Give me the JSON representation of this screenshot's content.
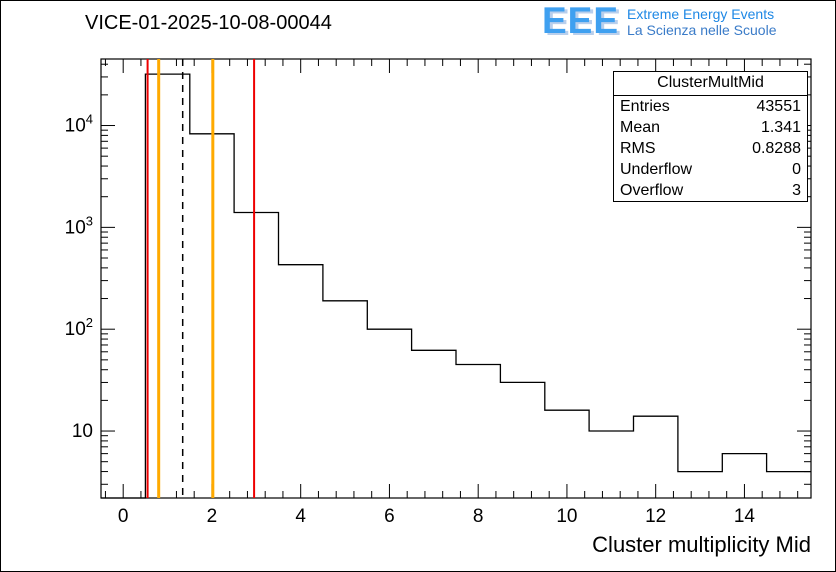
{
  "title": "VICE-01-2025-10-08-00044",
  "logo": {
    "acronym": "EEE",
    "line1": "Extreme Energy Events",
    "line2": "La Scienza nelle Scuole",
    "color": "#3fa0f0"
  },
  "stats": {
    "title": "ClusterMultMid",
    "rows": [
      {
        "label": "Entries",
        "value": "43551"
      },
      {
        "label": "Mean",
        "value": "1.341"
      },
      {
        "label": "RMS",
        "value": "0.8288"
      },
      {
        "label": "Underflow",
        "value": "0"
      },
      {
        "label": "Overflow",
        "value": "3"
      }
    ]
  },
  "chart_data": {
    "type": "bar",
    "subtype": "step-histogram",
    "title": "VICE-01-2025-10-08-00044",
    "xlabel": "Cluster multiplicity Mid",
    "ylabel": "",
    "y_scale": "log",
    "grid": false,
    "legend": false,
    "xlim": [
      -0.5,
      15.5
    ],
    "ylim": [
      2.2,
      45000
    ],
    "bin_width": 1,
    "bin_centers": [
      0,
      1,
      2,
      3,
      4,
      5,
      6,
      7,
      8,
      9,
      10,
      11,
      12,
      13,
      14,
      15
    ],
    "counts": [
      0,
      32000,
      8300,
      1400,
      430,
      190,
      100,
      62,
      45,
      30,
      16,
      10,
      14,
      4,
      6,
      4
    ],
    "x_major_ticks": [
      0,
      2,
      4,
      6,
      8,
      10,
      12,
      14
    ],
    "x_minor_step": 0.4,
    "y_major_ticks": [
      10,
      100,
      1000,
      10000
    ],
    "y_major_labels": [
      "10",
      "10^2",
      "10^3",
      "10^4"
    ],
    "marker_lines": [
      {
        "x": 0.55,
        "color": "#ee0000",
        "style": "solid",
        "width": 2
      },
      {
        "x": 0.8,
        "color": "#ffaa00",
        "style": "solid",
        "width": 3
      },
      {
        "x": 1.341,
        "color": "#000000",
        "style": "dashed",
        "width": 1.5
      },
      {
        "x": 2.02,
        "color": "#ffaa00",
        "style": "solid",
        "width": 3
      },
      {
        "x": 2.95,
        "color": "#ee0000",
        "style": "solid",
        "width": 2
      }
    ]
  }
}
